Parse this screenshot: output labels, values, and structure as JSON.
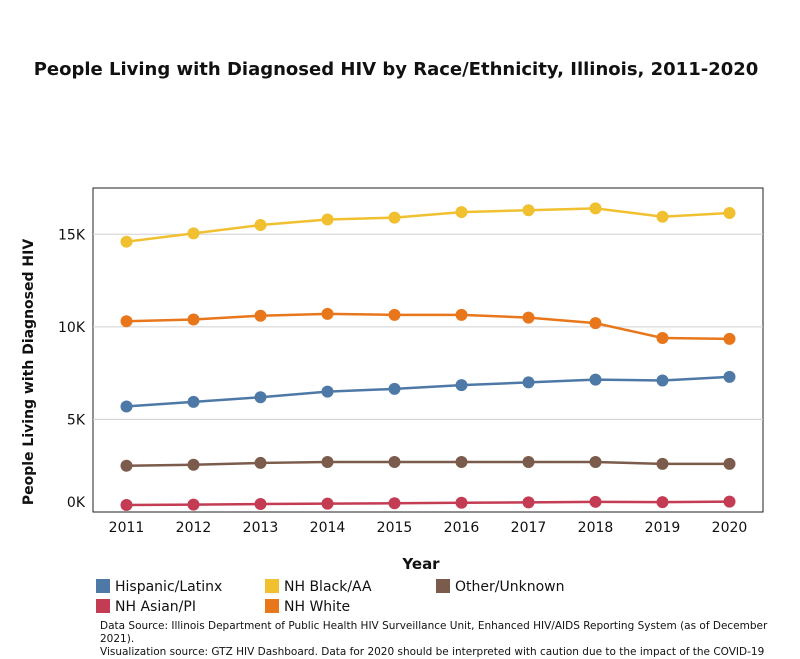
{
  "chart_data": {
    "type": "line",
    "title": "People Living with Diagnosed HIV by Race/Ethnicity, Illinois, 2011-2020",
    "x_label": "Year",
    "y_label": "People Living with Diagnosed HIV",
    "categories": [
      "2011",
      "2012",
      "2013",
      "2014",
      "2015",
      "2016",
      "2017",
      "2018",
      "2019",
      "2020"
    ],
    "ylim": [
      0,
      17500
    ],
    "yticks": [
      {
        "value": 0,
        "label": "0K"
      },
      {
        "value": 5000,
        "label": "5K"
      },
      {
        "value": 10000,
        "label": "10K"
      },
      {
        "value": 15000,
        "label": "15K"
      }
    ],
    "grid": true,
    "series": [
      {
        "name": "Hispanic/Latinx",
        "color": "#4e79a7",
        "values": [
          5700,
          5950,
          6200,
          6500,
          6650,
          6850,
          7000,
          7150,
          7100,
          7300
        ]
      },
      {
        "name": "NH Black/AA",
        "color": "#f0c030",
        "values": [
          14600,
          15050,
          15500,
          15800,
          15900,
          16200,
          16300,
          16400,
          15950,
          16150
        ]
      },
      {
        "name": "Other/Unknown",
        "color": "#7b5b4b",
        "values": [
          2500,
          2550,
          2650,
          2700,
          2700,
          2700,
          2700,
          2700,
          2600,
          2600
        ]
      },
      {
        "name": "NH Asian/PI",
        "color": "#c33c54",
        "values": [
          380,
          400,
          430,
          450,
          470,
          500,
          520,
          550,
          530,
          560
        ]
      },
      {
        "name": "NH White",
        "color": "#e8771c",
        "values": [
          10300,
          10400,
          10600,
          10700,
          10650,
          10650,
          10500,
          10200,
          9400,
          9350
        ]
      }
    ],
    "notes": [
      "Data Source: Illinois Department of Public Health HIV Surveillance Unit, Enhanced HIV/AIDS Reporting System (as of December 2021).",
      "Visualization source: GTZ HIV Dashboard. Data for 2020 should be interpreted with caution due to the impact of the COVID-19"
    ]
  }
}
